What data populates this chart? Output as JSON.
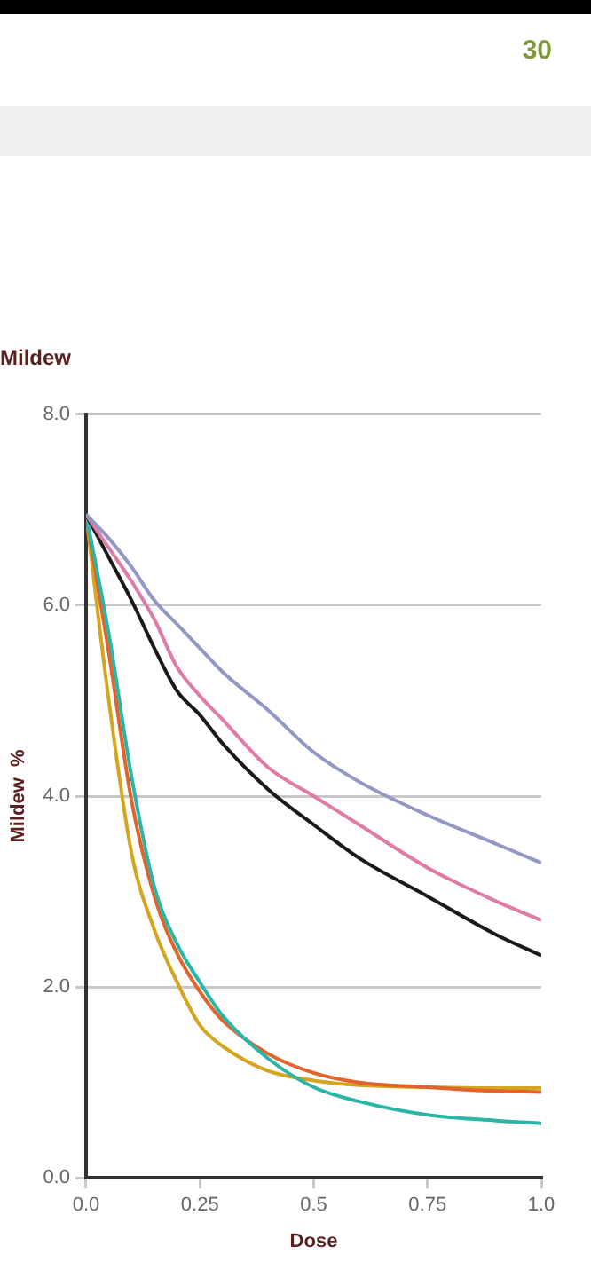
{
  "chart_data": {
    "type": "line",
    "title": "Mildew",
    "xlabel": "Dose",
    "ylabel": "Mildew  %",
    "annotations": [
      "30"
    ],
    "x": [
      0,
      0.05,
      0.1,
      0.15,
      0.2,
      0.25,
      0.3,
      0.4,
      0.5,
      0.6,
      0.75,
      0.9,
      1.0
    ],
    "series": [
      {
        "color": "#9397c6",
        "values": [
          6.95,
          6.7,
          6.4,
          6.05,
          5.8,
          5.55,
          5.3,
          4.9,
          4.46,
          4.15,
          3.8,
          3.5,
          3.3
        ]
      },
      {
        "color": "#e07aa6",
        "values": [
          6.95,
          6.6,
          6.25,
          5.85,
          5.35,
          5.05,
          4.8,
          4.3,
          4.0,
          3.7,
          3.25,
          2.9,
          2.7
        ]
      },
      {
        "color": "#1a1a1a",
        "values": [
          6.95,
          6.5,
          6.05,
          5.55,
          5.1,
          4.85,
          4.55,
          4.07,
          3.7,
          3.35,
          2.95,
          2.55,
          2.33
        ]
      },
      {
        "color": "#2bb5a6",
        "values": [
          6.95,
          5.7,
          4.2,
          3.05,
          2.45,
          2.05,
          1.7,
          1.25,
          0.95,
          0.8,
          0.66,
          0.6,
          0.57
        ]
      },
      {
        "color": "#e0642c",
        "values": [
          6.95,
          5.5,
          3.95,
          2.95,
          2.35,
          1.95,
          1.65,
          1.3,
          1.1,
          1.0,
          0.95,
          0.91,
          0.9
        ]
      },
      {
        "color": "#d4a51f",
        "values": [
          6.95,
          5.0,
          3.4,
          2.6,
          2.05,
          1.6,
          1.38,
          1.12,
          1.02,
          0.97,
          0.95,
          0.94,
          0.94
        ]
      }
    ],
    "xlim": [
      0,
      1
    ],
    "xticks": [
      {
        "value": 0,
        "label": "0.0"
      },
      0.25,
      0.5,
      0.75,
      {
        "value": 1,
        "label": "1.0"
      }
    ],
    "ylim": [
      0,
      8
    ],
    "yticks": [
      {
        "value": 0,
        "label": "0.0"
      },
      {
        "value": 2,
        "label": "2.0"
      },
      {
        "value": 4,
        "label": "4.0"
      },
      {
        "value": 6,
        "label": "6.0"
      },
      {
        "value": 8,
        "label": "8.0"
      }
    ],
    "grid": "y",
    "legend": false,
    "marker": "none",
    "line_style": "solid"
  }
}
